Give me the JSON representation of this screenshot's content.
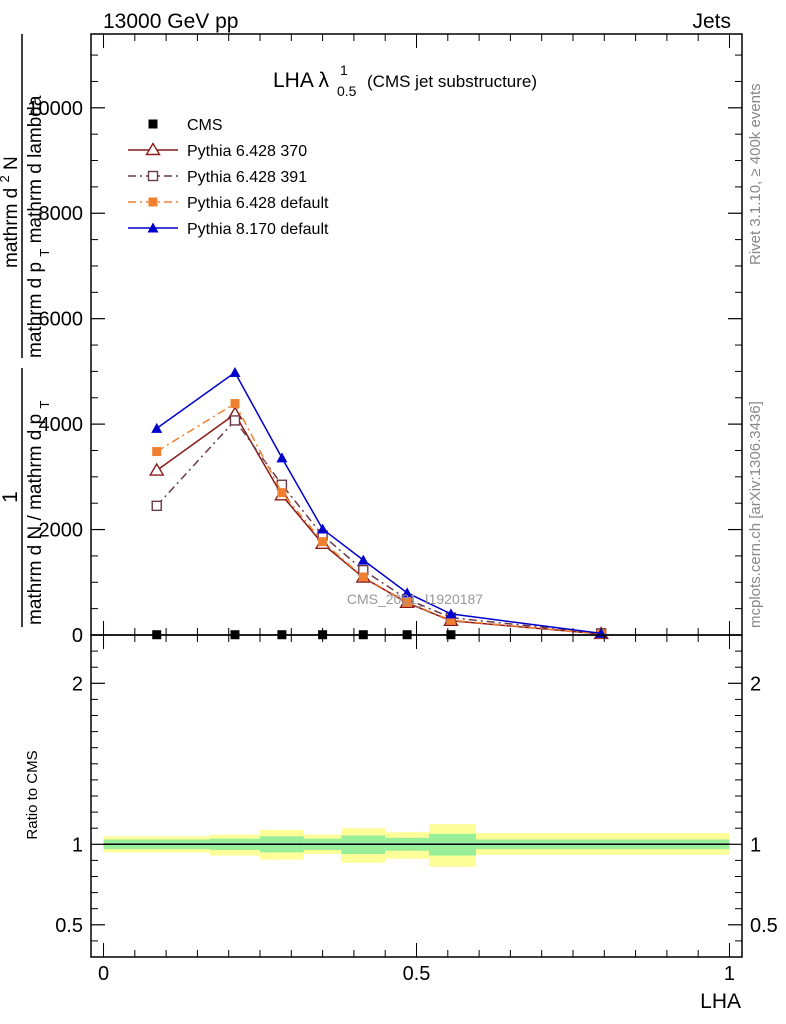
{
  "header": {
    "left": "13000 GeV pp",
    "right": "Jets"
  },
  "side_labels": {
    "rivet": "Rivet 3.1.10, ≥ 400k events",
    "mcplots": "mcplots.cern.ch [arXiv:1306.3436]"
  },
  "chart_data": [
    {
      "type": "line",
      "title_main": "LHA λ",
      "title_sup": "1",
      "title_sub": "0.5",
      "title_rest": "(CMS jet substructure)",
      "watermark": "CMS_2021_I1920187",
      "ylabel_numerator": "1",
      "ylabel_denominator": "mathrm d N / mathrm d p",
      "ylabel_denominator_sub": "T",
      "ylabel_top": "mathrm d",
      "ylabel_top_sup": "2",
      "ylabel_top_rest": "N",
      "ylabel_bottom": "mathrm d p",
      "ylabel_bottom_sub": "T",
      "ylabel_bottom_rest": " mathrm d lambda",
      "ylim": [
        0,
        11400
      ],
      "yticks": [
        0,
        2000,
        4000,
        6000,
        8000,
        10000
      ],
      "ytick_labels": [
        "0",
        "2000",
        "4000",
        "6000",
        "8000",
        "10000"
      ],
      "xlim": [
        -0.02,
        1.02
      ],
      "legend_position": "top-left",
      "series": [
        {
          "name": "CMS",
          "marker": "square-filled",
          "color": "#000000",
          "dash": "",
          "x": [
            0.085,
            0.21,
            0.285,
            0.35,
            0.415,
            0.485,
            0.555
          ],
          "y": [
            5,
            5,
            5,
            5,
            5,
            5,
            5
          ]
        },
        {
          "name": "Pythia 6.428 370",
          "marker": "triangle-open",
          "color": "#8b1a1a",
          "dash": "",
          "x": [
            0.085,
            0.21,
            0.285,
            0.35,
            0.415,
            0.485,
            0.555,
            0.795
          ],
          "y": [
            3120,
            4190,
            2650,
            1730,
            1090,
            610,
            270,
            20
          ]
        },
        {
          "name": "Pythia 6.428 391",
          "marker": "square-open",
          "color": "#6b3a4a",
          "dash": "8,4,2,4",
          "x": [
            0.085,
            0.21,
            0.285,
            0.35,
            0.415,
            0.485,
            0.555,
            0.795
          ],
          "y": [
            2450,
            4070,
            2850,
            1890,
            1230,
            680,
            330,
            30
          ]
        },
        {
          "name": "Pythia 6.428 default",
          "marker": "square-filled",
          "color": "#f08030",
          "dash": "8,4,2,4",
          "x": [
            0.085,
            0.21,
            0.285,
            0.35,
            0.415,
            0.485,
            0.555,
            0.795
          ],
          "y": [
            3480,
            4390,
            2700,
            1770,
            1100,
            620,
            280,
            20
          ]
        },
        {
          "name": "Pythia 8.170 default",
          "marker": "triangle-filled",
          "color": "#0000cc",
          "dash": "",
          "x": [
            0.085,
            0.21,
            0.285,
            0.35,
            0.415,
            0.485,
            0.555,
            0.795
          ],
          "y": [
            3920,
            4980,
            3360,
            2010,
            1420,
            800,
            400,
            30
          ]
        }
      ]
    },
    {
      "type": "area",
      "ylabel": "Ratio to CMS",
      "xlabel": "LHA",
      "ylim": [
        0.3,
        2.3
      ],
      "yticks": [
        0.5,
        1,
        2
      ],
      "ytick_labels": [
        "0.5",
        "1",
        "2"
      ],
      "xlim": [
        -0.02,
        1.02
      ],
      "xticks": [
        0,
        0.5,
        1
      ],
      "xtick_labels": [
        "0",
        "0.5",
        "1"
      ],
      "reference_line": 1,
      "bins": [
        {
          "x0": 0.0,
          "x1": 0.17,
          "inner": [
            0.97,
            1.03
          ],
          "outer": [
            0.95,
            1.05
          ]
        },
        {
          "x0": 0.17,
          "x1": 0.25,
          "inner": [
            0.965,
            1.035
          ],
          "outer": [
            0.93,
            1.06
          ]
        },
        {
          "x0": 0.25,
          "x1": 0.32,
          "inner": [
            0.95,
            1.05
          ],
          "outer": [
            0.905,
            1.09
          ]
        },
        {
          "x0": 0.32,
          "x1": 0.38,
          "inner": [
            0.965,
            1.035
          ],
          "outer": [
            0.94,
            1.06
          ]
        },
        {
          "x0": 0.38,
          "x1": 0.45,
          "inner": [
            0.94,
            1.055
          ],
          "outer": [
            0.885,
            1.1
          ]
        },
        {
          "x0": 0.45,
          "x1": 0.52,
          "inner": [
            0.96,
            1.04
          ],
          "outer": [
            0.91,
            1.075
          ]
        },
        {
          "x0": 0.52,
          "x1": 0.595,
          "inner": [
            0.93,
            1.065
          ],
          "outer": [
            0.86,
            1.125
          ]
        },
        {
          "x0": 0.595,
          "x1": 1.0,
          "inner": [
            0.97,
            1.03
          ],
          "outer": [
            0.935,
            1.07
          ]
        }
      ]
    }
  ]
}
